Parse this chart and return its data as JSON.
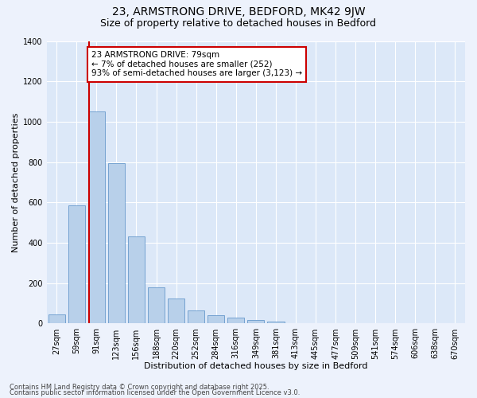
{
  "title": "23, ARMSTRONG DRIVE, BEDFORD, MK42 9JW",
  "subtitle": "Size of property relative to detached houses in Bedford",
  "xlabel": "Distribution of detached houses by size in Bedford",
  "ylabel": "Number of detached properties",
  "categories": [
    "27sqm",
    "59sqm",
    "91sqm",
    "123sqm",
    "156sqm",
    "188sqm",
    "220sqm",
    "252sqm",
    "284sqm",
    "316sqm",
    "349sqm",
    "381sqm",
    "413sqm",
    "445sqm",
    "477sqm",
    "509sqm",
    "541sqm",
    "574sqm",
    "606sqm",
    "638sqm",
    "670sqm"
  ],
  "bar_heights": [
    45,
    585,
    1050,
    795,
    430,
    180,
    125,
    65,
    40,
    28,
    18,
    10,
    0,
    0,
    0,
    0,
    0,
    0,
    0,
    0,
    0
  ],
  "bar_color": "#b8d0ea",
  "bar_edgecolor": "#6699cc",
  "vline_color": "#cc0000",
  "annotation_text": "23 ARMSTRONG DRIVE: 79sqm\n← 7% of detached houses are smaller (252)\n93% of semi-detached houses are larger (3,123) →",
  "ylim": [
    0,
    1400
  ],
  "yticks": [
    0,
    200,
    400,
    600,
    800,
    1000,
    1200,
    1400
  ],
  "plot_bg": "#dce8f8",
  "fig_bg": "#edf2fc",
  "grid_color": "#ffffff",
  "footer1": "Contains HM Land Registry data © Crown copyright and database right 2025.",
  "footer2": "Contains public sector information licensed under the Open Government Licence v3.0.",
  "title_fontsize": 10,
  "subtitle_fontsize": 9,
  "xlabel_fontsize": 8,
  "ylabel_fontsize": 8,
  "tick_fontsize": 7,
  "footer_fontsize": 6,
  "annot_fontsize": 7.5
}
